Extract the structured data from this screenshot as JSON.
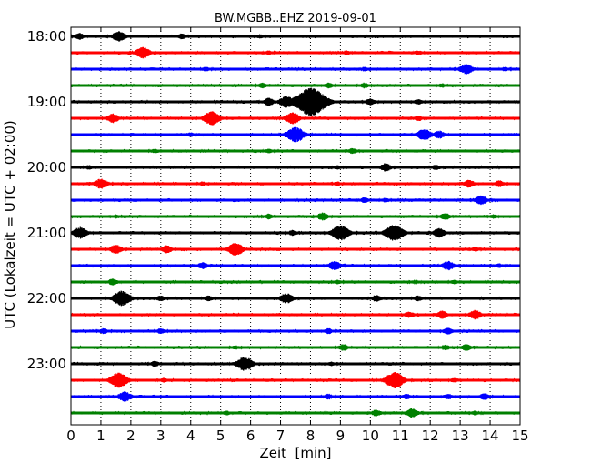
{
  "chart_data": {
    "type": "line",
    "title": "BW.MGBB..EHZ 2019-09-01",
    "xlabel": "Zeit  [min]",
    "ylabel": "UTC (Lokalzeit = UTC + 02:00)",
    "xlim": [
      0,
      15
    ],
    "xticks": [
      "0",
      "1",
      "2",
      "3",
      "4",
      "5",
      "6",
      "7",
      "8",
      "9",
      "10",
      "11",
      "12",
      "13",
      "14",
      "15"
    ],
    "yticks": [
      {
        "label": "18:00",
        "row": 0
      },
      {
        "label": "19:00",
        "row": 4
      },
      {
        "label": "20:00",
        "row": 8
      },
      {
        "label": "21:00",
        "row": 12
      },
      {
        "label": "22:00",
        "row": 16
      },
      {
        "label": "23:00",
        "row": 20
      }
    ],
    "grid": "vertical-dotted",
    "row_minutes": 15,
    "row_colors": [
      "#000000",
      "#ff0000",
      "#0000ff",
      "#008000"
    ],
    "traces": [
      {
        "start": "18:00",
        "bursts": [
          [
            0.3,
            0.6
          ],
          [
            1.6,
            0.9
          ],
          [
            3.7,
            0.5
          ],
          [
            6.3,
            0.4
          ]
        ]
      },
      {
        "start": "18:15",
        "bursts": [
          [
            2.4,
            1.0
          ],
          [
            6.6,
            0.4
          ],
          [
            9.2,
            0.4
          ],
          [
            11.6,
            0.4
          ]
        ]
      },
      {
        "start": "18:30",
        "bursts": [
          [
            4.5,
            0.4
          ],
          [
            9.8,
            0.4
          ],
          [
            13.2,
            0.9
          ],
          [
            14.5,
            0.4
          ]
        ]
      },
      {
        "start": "18:45",
        "bursts": [
          [
            6.4,
            0.5
          ],
          [
            8.6,
            0.5
          ],
          [
            9.8,
            0.5
          ],
          [
            12.4,
            0.4
          ]
        ]
      },
      {
        "start": "19:00",
        "bursts": [
          [
            6.6,
            0.7
          ],
          [
            7.2,
            1.0
          ],
          [
            8.0,
            2.4
          ],
          [
            10.0,
            0.6
          ],
          [
            11.6,
            0.5
          ]
        ]
      },
      {
        "start": "19:15",
        "bursts": [
          [
            1.4,
            0.8
          ],
          [
            4.7,
            1.2
          ],
          [
            7.4,
            1.0
          ],
          [
            11.6,
            0.5
          ]
        ]
      },
      {
        "start": "19:30",
        "bursts": [
          [
            4.0,
            0.4
          ],
          [
            7.5,
            1.3
          ],
          [
            11.8,
            1.0
          ],
          [
            12.3,
            0.7
          ]
        ]
      },
      {
        "start": "19:45",
        "bursts": [
          [
            2.8,
            0.4
          ],
          [
            6.6,
            0.4
          ],
          [
            9.4,
            0.5
          ]
        ]
      },
      {
        "start": "20:00",
        "bursts": [
          [
            0.6,
            0.4
          ],
          [
            8.9,
            0.4
          ],
          [
            10.5,
            0.7
          ],
          [
            12.2,
            0.5
          ]
        ]
      },
      {
        "start": "20:15",
        "bursts": [
          [
            1.0,
            0.9
          ],
          [
            4.4,
            0.4
          ],
          [
            8.9,
            0.4
          ],
          [
            13.3,
            0.7
          ],
          [
            14.3,
            0.6
          ]
        ]
      },
      {
        "start": "20:30",
        "bursts": [
          [
            9.8,
            0.5
          ],
          [
            10.5,
            0.4
          ],
          [
            13.7,
            0.8
          ]
        ]
      },
      {
        "start": "20:45",
        "bursts": [
          [
            1.5,
            0.4
          ],
          [
            6.6,
            0.5
          ],
          [
            8.4,
            0.7
          ],
          [
            12.5,
            0.6
          ],
          [
            14.1,
            0.4
          ]
        ]
      },
      {
        "start": "21:00",
        "bursts": [
          [
            0.3,
            1.0
          ],
          [
            7.4,
            0.5
          ],
          [
            9.0,
            1.3
          ],
          [
            10.8,
            1.4
          ],
          [
            12.3,
            0.8
          ]
        ]
      },
      {
        "start": "21:15",
        "bursts": [
          [
            1.5,
            0.8
          ],
          [
            3.2,
            0.7
          ],
          [
            5.5,
            1.1
          ],
          [
            13.5,
            0.4
          ]
        ]
      },
      {
        "start": "21:30",
        "bursts": [
          [
            4.4,
            0.6
          ],
          [
            8.8,
            0.8
          ],
          [
            12.6,
            0.8
          ],
          [
            14.3,
            0.4
          ]
        ]
      },
      {
        "start": "21:45",
        "bursts": [
          [
            1.4,
            0.6
          ],
          [
            8.9,
            0.4
          ],
          [
            11.5,
            0.4
          ],
          [
            12.8,
            0.4
          ]
        ]
      },
      {
        "start": "22:00",
        "bursts": [
          [
            1.7,
            1.3
          ],
          [
            3.0,
            0.5
          ],
          [
            4.6,
            0.5
          ],
          [
            7.2,
            0.9
          ],
          [
            10.2,
            0.6
          ],
          [
            11.6,
            0.5
          ]
        ]
      },
      {
        "start": "22:15",
        "bursts": [
          [
            11.3,
            0.6
          ],
          [
            12.4,
            0.7
          ],
          [
            13.5,
            0.8
          ]
        ]
      },
      {
        "start": "22:30",
        "bursts": [
          [
            1.1,
            0.5
          ],
          [
            3.0,
            0.5
          ],
          [
            8.6,
            0.5
          ],
          [
            12.6,
            0.6
          ]
        ]
      },
      {
        "start": "22:45",
        "bursts": [
          [
            5.5,
            0.4
          ],
          [
            9.1,
            0.6
          ],
          [
            12.5,
            0.5
          ],
          [
            13.2,
            0.6
          ]
        ]
      },
      {
        "start": "23:00",
        "bursts": [
          [
            2.8,
            0.5
          ],
          [
            5.8,
            1.2
          ],
          [
            8.7,
            0.4
          ]
        ]
      },
      {
        "start": "23:15",
        "bursts": [
          [
            1.6,
            1.3
          ],
          [
            3.1,
            0.4
          ],
          [
            10.8,
            1.4
          ],
          [
            12.8,
            0.4
          ]
        ]
      },
      {
        "start": "23:30",
        "bursts": [
          [
            1.8,
            0.9
          ],
          [
            8.6,
            0.5
          ],
          [
            11.2,
            0.5
          ],
          [
            12.6,
            0.5
          ],
          [
            13.8,
            0.6
          ]
        ]
      },
      {
        "start": "23:45",
        "bursts": [
          [
            5.2,
            0.4
          ],
          [
            10.2,
            0.6
          ],
          [
            11.4,
            0.8
          ],
          [
            13.5,
            0.4
          ]
        ]
      }
    ]
  }
}
